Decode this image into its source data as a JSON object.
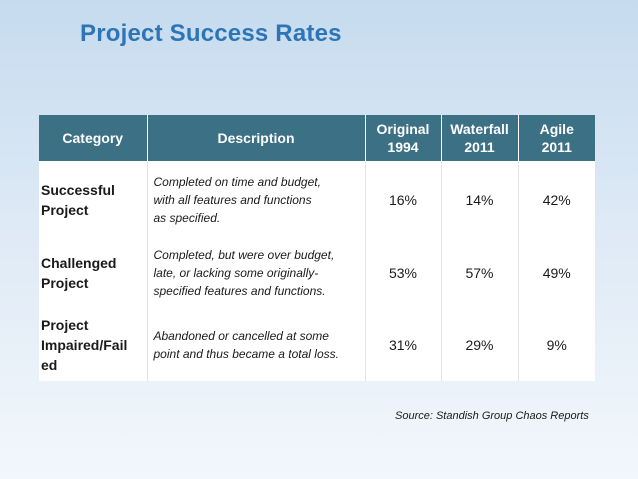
{
  "title": "Project Success Rates",
  "table": {
    "headers": {
      "category": "Category",
      "description": "Description",
      "original_line1": "Original",
      "original_line2": "1994",
      "waterfall_line1": "Waterfall",
      "waterfall_line2": "2011",
      "agile_line1": "Agile",
      "agile_line2": "2011"
    },
    "rows": [
      {
        "category": [
          "Successful",
          "Project"
        ],
        "description": [
          "Completed on time and budget,",
          "with all features and functions",
          "as specified."
        ],
        "original": "16%",
        "waterfall": "14%",
        "agile": "42%"
      },
      {
        "category": [
          "Challenged",
          "Project"
        ],
        "description": [
          "Completed, but were over budget,",
          "late, or lacking some originally-",
          "specified  features and functions."
        ],
        "original": "53%",
        "waterfall": "57%",
        "agile": "49%"
      },
      {
        "category": [
          "Project",
          "Impaired/Fail",
          "ed"
        ],
        "description": [
          "Abandoned or cancelled at some",
          "point and thus became a total loss."
        ],
        "original": "31%",
        "waterfall": "29%",
        "agile": "9%"
      }
    ]
  },
  "source": "Source: Standish Group Chaos Reports",
  "colors": {
    "title": "#2e75b6",
    "header_bg": "#3c7085",
    "header_text": "#ffffff"
  }
}
